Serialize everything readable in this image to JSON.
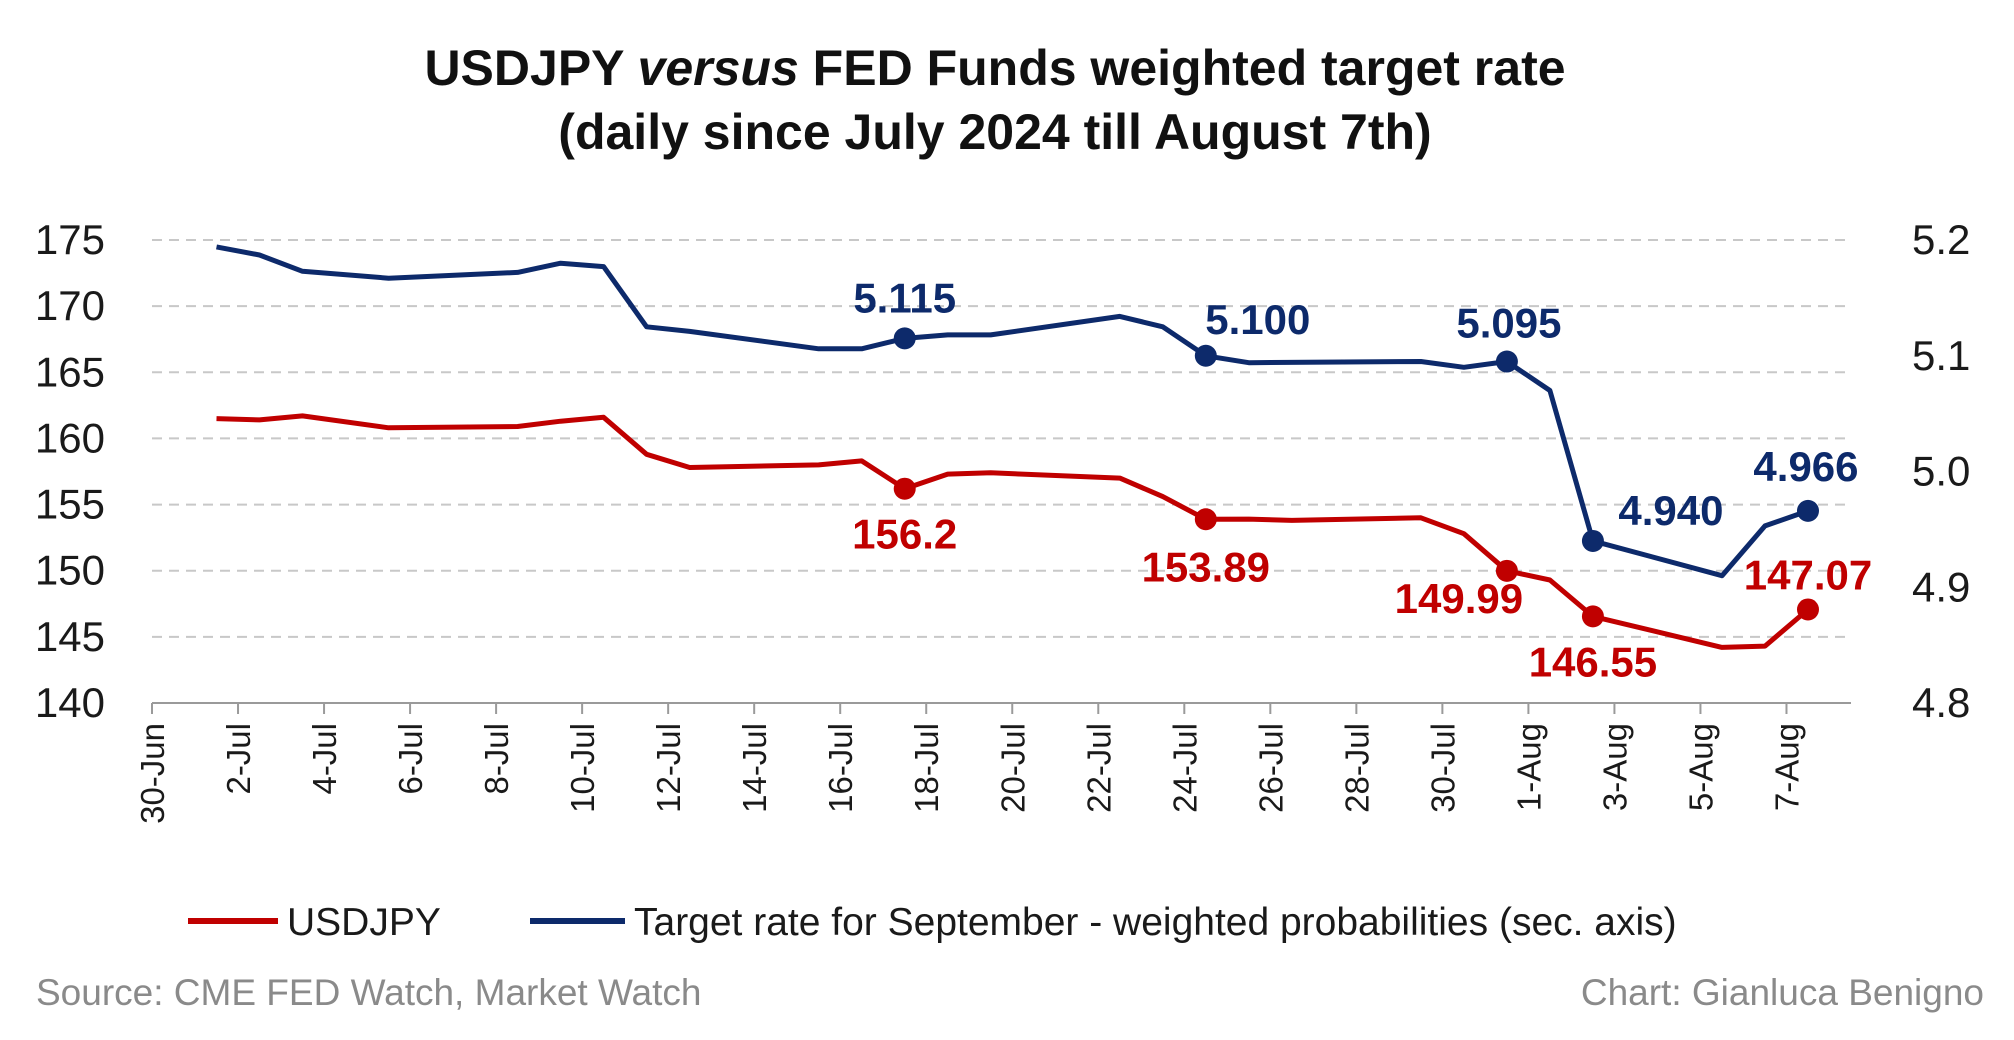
{
  "title_line1_part1": "USDJPY",
  "title_line1_italic": "versus",
  "title_line1_part2": "FED Funds weighted target rate",
  "title_line2": "(daily since July 2024 till August 7th)",
  "source": "Source: CME FED Watch, Market Watch",
  "credit": "Chart: Gianluca Benigno",
  "colors": {
    "usdjpy": "#c00000",
    "target": "#0d2a6b",
    "grid": "#c8c8c8",
    "axis": "#9a9a9a"
  },
  "chart_data": {
    "type": "line",
    "x_tick_labels": [
      "30-Jun",
      "2-Jul",
      "4-Jul",
      "6-Jul",
      "8-Jul",
      "10-Jul",
      "12-Jul",
      "14-Jul",
      "16-Jul",
      "18-Jul",
      "20-Jul",
      "22-Jul",
      "24-Jul",
      "26-Jul",
      "28-Jul",
      "30-Jul",
      "1-Aug",
      "3-Aug",
      "5-Aug",
      "7-Aug"
    ],
    "y_left": {
      "min": 140,
      "max": 175,
      "ticks": [
        "140",
        "145",
        "150",
        "155",
        "160",
        "165",
        "170",
        "175"
      ]
    },
    "y_right": {
      "min": 4.8,
      "max": 5.2,
      "ticks": [
        "4.8",
        "4.9",
        "5.0",
        "5.1",
        "5.2"
      ]
    },
    "grid": true,
    "legend_position": "bottom",
    "series": [
      {
        "name": "USDJPY",
        "axis": "left",
        "points": [
          [
            "1-Jul",
            161.5
          ],
          [
            "2-Jul",
            161.4
          ],
          [
            "3-Jul",
            161.7
          ],
          [
            "5-Jul",
            160.8
          ],
          [
            "8-Jul",
            160.9
          ],
          [
            "9-Jul",
            161.3
          ],
          [
            "10-Jul",
            161.6
          ],
          [
            "11-Jul",
            158.8
          ],
          [
            "12-Jul",
            157.8
          ],
          [
            "15-Jul",
            158.0
          ],
          [
            "16-Jul",
            158.3
          ],
          [
            "17-Jul",
            156.2
          ],
          [
            "18-Jul",
            157.3
          ],
          [
            "19-Jul",
            157.4
          ],
          [
            "22-Jul",
            157.0
          ],
          [
            "23-Jul",
            155.6
          ],
          [
            "24-Jul",
            153.89
          ],
          [
            "25-Jul",
            153.9
          ],
          [
            "26-Jul",
            153.8
          ],
          [
            "29-Jul",
            154.0
          ],
          [
            "30-Jul",
            152.8
          ],
          [
            "31-Jul",
            149.99
          ],
          [
            "1-Aug",
            149.3
          ],
          [
            "2-Aug",
            146.55
          ],
          [
            "5-Aug",
            144.2
          ],
          [
            "6-Aug",
            144.3
          ],
          [
            "7-Aug",
            147.07
          ]
        ],
        "annotations": [
          {
            "date": "17-Jul",
            "label": "156.2"
          },
          {
            "date": "24-Jul",
            "label": "153.89"
          },
          {
            "date": "31-Jul",
            "label": "149.99"
          },
          {
            "date": "2-Aug",
            "label": "146.55"
          },
          {
            "date": "7-Aug",
            "label": "147.07"
          }
        ]
      },
      {
        "name": "Target rate for September - weighted probabilities (sec. axis)",
        "axis": "right",
        "points": [
          [
            "1-Jul",
            5.194
          ],
          [
            "2-Jul",
            5.187
          ],
          [
            "3-Jul",
            5.173
          ],
          [
            "5-Jul",
            5.167
          ],
          [
            "8-Jul",
            5.172
          ],
          [
            "9-Jul",
            5.18
          ],
          [
            "10-Jul",
            5.177
          ],
          [
            "11-Jul",
            5.125
          ],
          [
            "12-Jul",
            5.121
          ],
          [
            "15-Jul",
            5.106
          ],
          [
            "16-Jul",
            5.106
          ],
          [
            "17-Jul",
            5.115
          ],
          [
            "18-Jul",
            5.118
          ],
          [
            "19-Jul",
            5.118
          ],
          [
            "22-Jul",
            5.134
          ],
          [
            "23-Jul",
            5.125
          ],
          [
            "24-Jul",
            5.1
          ],
          [
            "25-Jul",
            5.094
          ],
          [
            "29-Jul",
            5.095
          ],
          [
            "30-Jul",
            5.09
          ],
          [
            "31-Jul",
            5.095
          ],
          [
            "1-Aug",
            5.07
          ],
          [
            "2-Aug",
            4.94
          ],
          [
            "5-Aug",
            4.91
          ],
          [
            "6-Aug",
            4.953
          ],
          [
            "7-Aug",
            4.966
          ]
        ],
        "annotations": [
          {
            "date": "17-Jul",
            "label": "5.115"
          },
          {
            "date": "24-Jul",
            "label": "5.100"
          },
          {
            "date": "31-Jul",
            "label": "5.095"
          },
          {
            "date": "2-Aug",
            "label": "4.940"
          },
          {
            "date": "7-Aug",
            "label": "4.966"
          }
        ]
      }
    ]
  }
}
